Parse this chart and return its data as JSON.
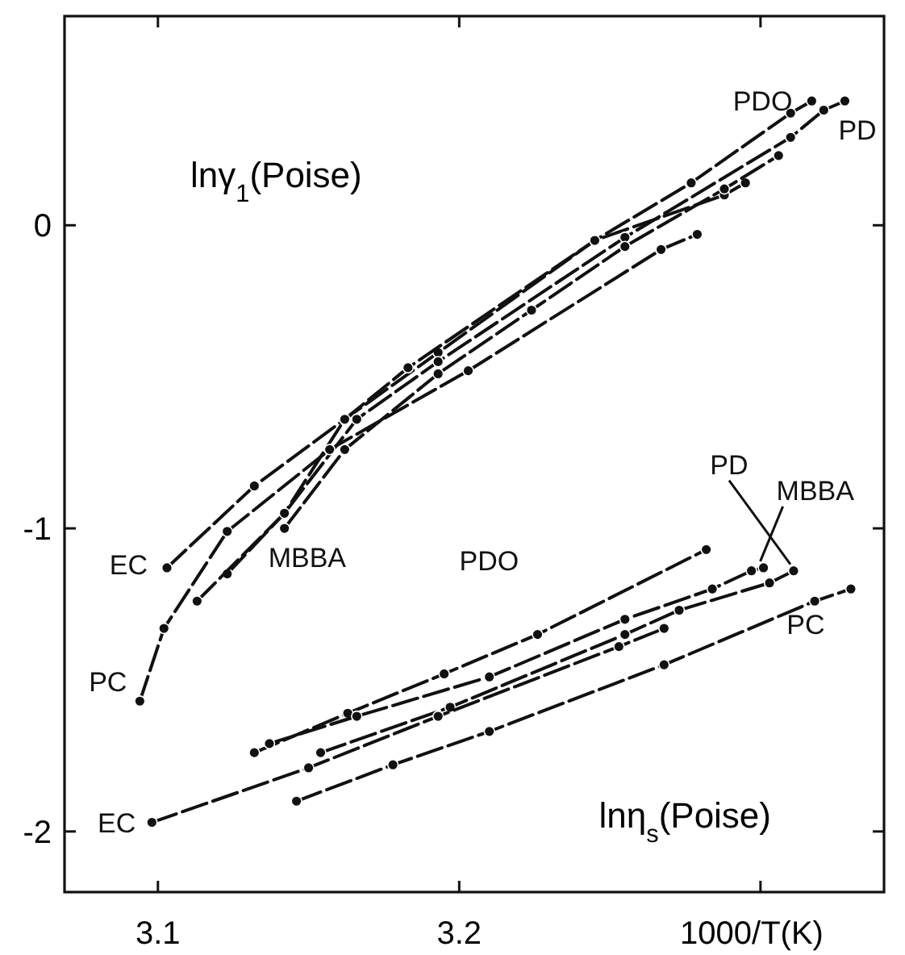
{
  "chart_data": {
    "type": "line",
    "xlabel": "1000/T(K)",
    "xlim": [
      3.069,
      3.341
    ],
    "ylim": [
      -2.2,
      0.69
    ],
    "xticks": [
      3.1,
      3.2,
      {
        "value": 3.3,
        "label": null
      }
    ],
    "yticks": [
      0,
      -1,
      -2
    ],
    "grid": false,
    "marker": "circle",
    "line_style": "dashed",
    "annotations": [
      "lnγ$_{1}$(Poise)",
      "lnη$_{s}$(Poise)"
    ],
    "series": [
      {
        "name": "EC",
        "color": "#111111",
        "x": [
          3.103,
          3.132,
          3.162,
          3.193,
          3.245,
          3.288,
          3.295
        ],
        "values": [
          -1.13,
          -0.86,
          -0.64,
          -0.42,
          -0.05,
          0.1,
          0.14
        ]
      },
      {
        "name": "PDO",
        "color": "#111111",
        "x": [
          3.123,
          3.142,
          3.162,
          3.183,
          3.245,
          3.277,
          3.31,
          3.317
        ],
        "values": [
          -1.15,
          -0.95,
          -0.64,
          -0.47,
          -0.05,
          0.14,
          0.37,
          0.41
        ]
      },
      {
        "name": "PD",
        "color": "#111111",
        "x": [
          3.113,
          3.142,
          3.166,
          3.193,
          3.255,
          3.31,
          3.321,
          3.328
        ],
        "values": [
          -1.24,
          -0.95,
          -0.64,
          -0.45,
          -0.04,
          0.29,
          0.38,
          0.41
        ]
      },
      {
        "name": "MBBA",
        "color": "#111111",
        "x": [
          3.142,
          3.162,
          3.193,
          3.224,
          3.255,
          3.288,
          3.306
        ],
        "values": [
          -1.0,
          -0.74,
          -0.49,
          -0.28,
          -0.07,
          0.12,
          0.23
        ]
      },
      {
        "name": "PC",
        "color": "#111111",
        "x": [
          3.094,
          3.102,
          3.123,
          3.157,
          3.203,
          3.267,
          3.279
        ],
        "values": [
          -1.57,
          -1.33,
          -1.01,
          -0.74,
          -0.48,
          -0.08,
          -0.03
        ]
      },
      {
        "name": "PDO",
        "color": "#111111",
        "x": [
          3.132,
          3.163,
          3.195,
          3.226,
          3.282
        ],
        "values": [
          -1.74,
          -1.61,
          -1.48,
          -1.35,
          -1.07
        ]
      },
      {
        "name": "MBBA",
        "color": "#111111",
        "x": [
          3.137,
          3.166,
          3.21,
          3.255,
          3.284,
          3.297,
          3.301
        ],
        "values": [
          -1.71,
          -1.62,
          -1.49,
          -1.3,
          -1.2,
          -1.14,
          -1.13
        ]
      },
      {
        "name": "PD",
        "color": "#111111",
        "x": [
          3.154,
          3.197,
          3.255,
          3.273,
          3.303,
          3.311
        ],
        "values": [
          -1.74,
          -1.59,
          -1.35,
          -1.27,
          -1.18,
          -1.14
        ]
      },
      {
        "name": "EC",
        "color": "#111111",
        "x": [
          3.098,
          3.15,
          3.193,
          3.253,
          3.268
        ],
        "values": [
          -1.97,
          -1.79,
          -1.62,
          -1.39,
          -1.33
        ]
      },
      {
        "name": "PC",
        "color": "#111111",
        "x": [
          3.146,
          3.178,
          3.21,
          3.268,
          3.318,
          3.33
        ],
        "values": [
          -1.9,
          -1.78,
          -1.67,
          -1.45,
          -1.24,
          -1.2
        ]
      }
    ]
  }
}
